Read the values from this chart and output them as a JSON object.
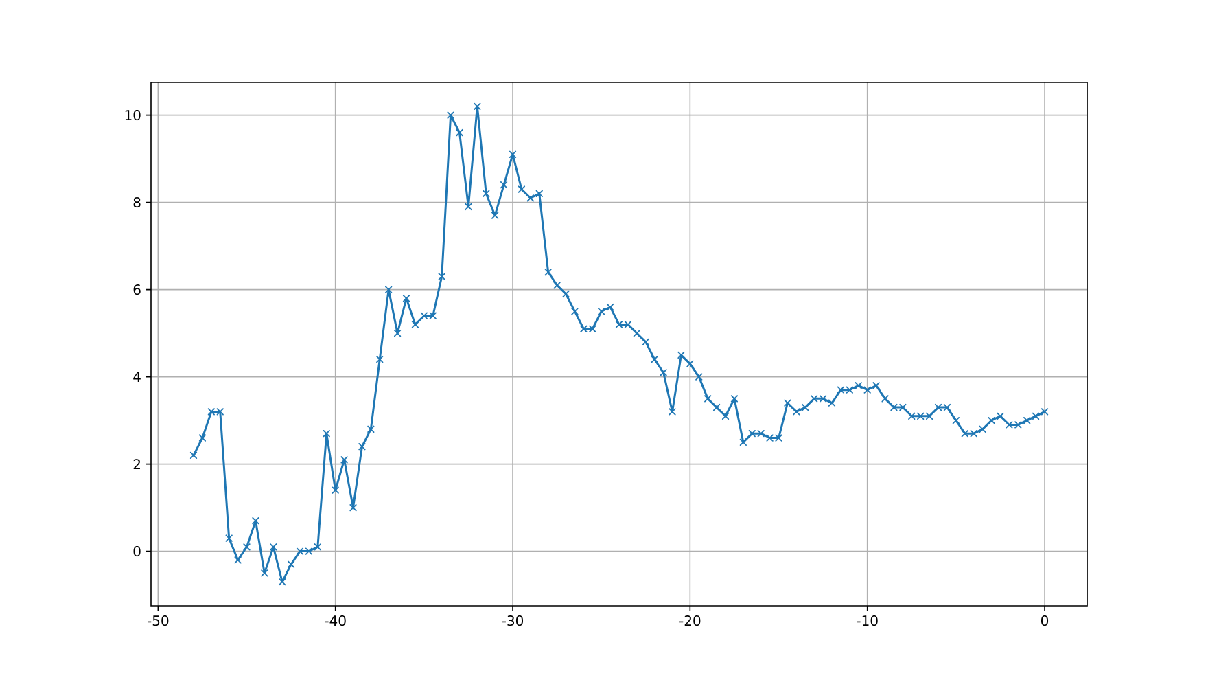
{
  "chart_data": {
    "type": "line",
    "x": [
      -48,
      -47.5,
      -47,
      -46.5,
      -46,
      -45.5,
      -45,
      -44.5,
      -44,
      -43.5,
      -43,
      -42.5,
      -42,
      -41.5,
      -41,
      -40.5,
      -40,
      -39.5,
      -39,
      -38.5,
      -38,
      -37.5,
      -37,
      -36.5,
      -36,
      -35.5,
      -35,
      -34.5,
      -34,
      -33.5,
      -33,
      -32.5,
      -32,
      -31.5,
      -31,
      -30.5,
      -30,
      -29.5,
      -29,
      -28.5,
      -28,
      -27.5,
      -27,
      -26.5,
      -26,
      -25.5,
      -25,
      -24.5,
      -24,
      -23.5,
      -23,
      -22.5,
      -22,
      -21.5,
      -21,
      -20.5,
      -20,
      -19.5,
      -19,
      -18.5,
      -18,
      -17.5,
      -17,
      -16.5,
      -16,
      -15.5,
      -15,
      -14.5,
      -14,
      -13.5,
      -13,
      -12.5,
      -12,
      -11.5,
      -11,
      -10.5,
      -10,
      -9.5,
      -9,
      -8.5,
      -8,
      -7.5,
      -7,
      -6.5,
      -6,
      -5.5,
      -5,
      -4.5,
      -4,
      -3.5,
      -3,
      -2.5,
      -2,
      -1.5,
      -1,
      -0.5,
      0
    ],
    "values": [
      2.2,
      2.6,
      3.2,
      3.2,
      0.3,
      -0.2,
      0.1,
      0.7,
      -0.5,
      0.1,
      -0.7,
      -0.3,
      0.0,
      0.0,
      0.1,
      2.7,
      1.4,
      2.1,
      1.0,
      2.4,
      2.8,
      4.4,
      6.0,
      5.0,
      5.8,
      5.2,
      5.4,
      5.4,
      6.3,
      10.0,
      9.6,
      7.9,
      10.2,
      8.2,
      7.7,
      8.4,
      9.1,
      8.3,
      8.1,
      8.2,
      6.4,
      6.1,
      5.9,
      5.5,
      5.1,
      5.1,
      5.5,
      5.6,
      5.2,
      5.2,
      5.0,
      4.8,
      4.4,
      4.1,
      3.2,
      4.5,
      4.3,
      4.0,
      3.5,
      3.3,
      3.1,
      3.5,
      2.5,
      2.7,
      2.7,
      2.6,
      2.6,
      3.4,
      3.2,
      3.3,
      3.5,
      3.5,
      3.4,
      3.7,
      3.7,
      3.8,
      3.7,
      3.8,
      3.5,
      3.3,
      3.3,
      3.1,
      3.1,
      3.1,
      3.3,
      3.3,
      3.0,
      2.7,
      2.7,
      2.8,
      3.0,
      3.1,
      2.9,
      2.9,
      3.0,
      3.1,
      3.2
    ],
    "color": "#1f77b4",
    "marker": "cross",
    "xlim": [
      -50.4,
      2.4
    ],
    "ylim": [
      -1.25,
      10.75
    ],
    "xticks": [
      -50,
      -40,
      -30,
      -20,
      -10,
      0
    ],
    "yticks": [
      0,
      2,
      4,
      6,
      8,
      10
    ],
    "grid": true
  }
}
